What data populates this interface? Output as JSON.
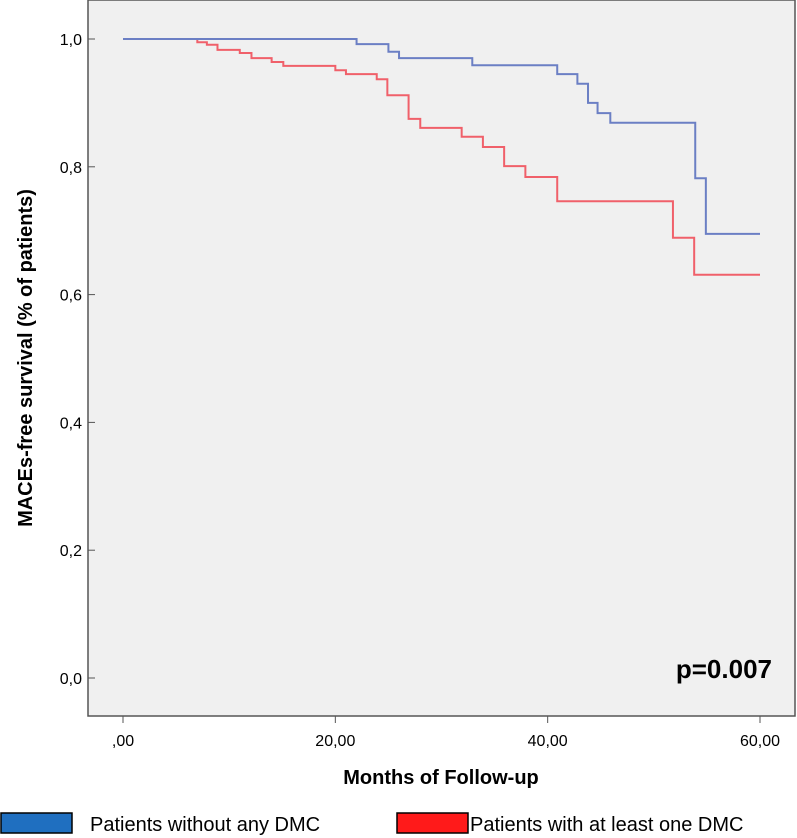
{
  "chart_data": {
    "type": "line",
    "step": true,
    "title": "",
    "xlabel": "Months of Follow-up",
    "ylabel": "MACEs-free survival (% of patients)",
    "xlim": [
      0,
      60
    ],
    "ylim": [
      0,
      1
    ],
    "x_ticks": [
      0,
      20,
      40,
      60
    ],
    "x_tick_labels": [
      ",00",
      "20,00",
      "40,00",
      "60,00"
    ],
    "y_ticks": [
      0,
      0.2,
      0.4,
      0.6,
      0.8,
      1.0
    ],
    "y_tick_labels": [
      "0,0",
      "0,2",
      "0,4",
      "0,6",
      "0,8",
      "1,0"
    ],
    "grid": false,
    "annotation": "p=0.007",
    "legend_position": "bottom",
    "series": [
      {
        "name": "Patients without any DMC",
        "color": "#6b7fc4",
        "legend_color": "#1f6fc0",
        "x": [
          0,
          22.0,
          25.0,
          26.0,
          32.9,
          40.9,
          42.8,
          43.8,
          44.7,
          45.9,
          53.9,
          54.9,
          60
        ],
        "y": [
          1.0,
          0.992,
          0.98,
          0.97,
          0.959,
          0.945,
          0.93,
          0.9,
          0.884,
          0.869,
          0.782,
          0.695,
          0.695
        ]
      },
      {
        "name": "Patients with at least one DMC",
        "color": "#f0606a",
        "legend_color": "#ff1a1a",
        "x": [
          0,
          7.0,
          7.9,
          8.9,
          11.0,
          12.1,
          14.0,
          15.1,
          20.0,
          21.0,
          23.9,
          24.9,
          26.9,
          28.0,
          31.9,
          33.9,
          35.9,
          37.9,
          40.9,
          51.8,
          53.8,
          60
        ],
        "y": [
          1.0,
          0.995,
          0.991,
          0.983,
          0.978,
          0.97,
          0.964,
          0.958,
          0.951,
          0.945,
          0.937,
          0.912,
          0.875,
          0.861,
          0.847,
          0.831,
          0.801,
          0.784,
          0.746,
          0.689,
          0.631,
          0.631
        ]
      }
    ]
  }
}
